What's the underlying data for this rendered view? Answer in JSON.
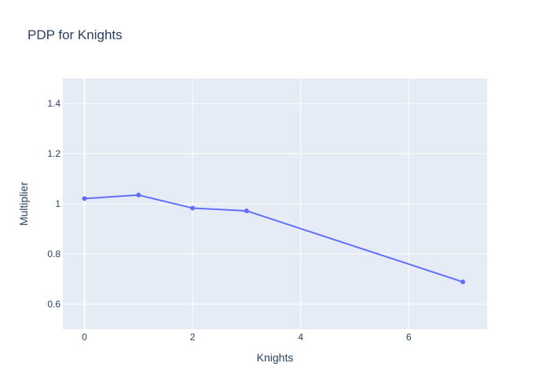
{
  "chart_data": {
    "type": "line",
    "title": "PDP for Knights",
    "xlabel": "Knights",
    "ylabel": "Multiplier",
    "x": [
      0,
      1,
      2,
      3,
      7
    ],
    "series": [
      {
        "values": [
          1.021,
          1.035,
          0.983,
          0.972,
          0.689
        ]
      }
    ],
    "xlim": [
      -0.4,
      7.45
    ],
    "ylim": [
      0.5,
      1.5
    ],
    "xticks": [
      0,
      2,
      4,
      6
    ],
    "xtick_labels": [
      "0",
      "2",
      "4",
      "6"
    ],
    "yticks": [
      0.6,
      0.8,
      1.0,
      1.2,
      1.4
    ],
    "ytick_labels": [
      "0.6",
      "0.8",
      "1",
      "1.2",
      "1.4"
    ],
    "grid": true,
    "legend": false,
    "colors": {
      "line": "#636efa",
      "plot_background": "#e5ecf6",
      "grid": "#ffffff",
      "text": "#2a3f5f"
    }
  }
}
